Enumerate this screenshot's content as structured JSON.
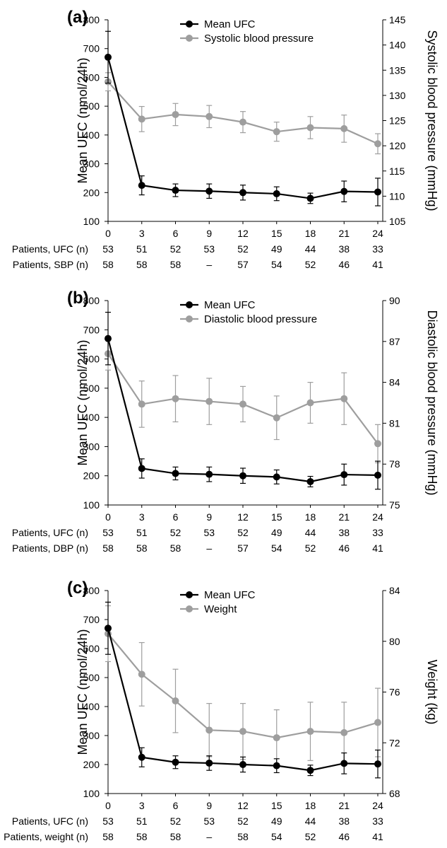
{
  "chart_data": [
    {
      "panel_label": "(a)",
      "type": "line",
      "x": [
        0,
        3,
        6,
        9,
        12,
        15,
        18,
        21,
        24
      ],
      "xticklabels": [
        "0",
        "3",
        "6",
        "9",
        "12",
        "15",
        "18",
        "21",
        "24"
      ],
      "ylabel": "Mean UFC (nmol/24h)",
      "y2label": "Systolic blood pressure (mmHg)",
      "ylim": [
        100,
        800
      ],
      "yticks": [
        100,
        200,
        300,
        400,
        500,
        600,
        700,
        800
      ],
      "y2lim": [
        105,
        145
      ],
      "y2ticks": [
        105,
        110,
        115,
        120,
        125,
        130,
        135,
        140,
        145
      ],
      "legend_position": "top-center",
      "series": [
        {
          "name": "Mean UFC",
          "axis": "left",
          "color": "#000000",
          "values": [
            670,
            225,
            208,
            205,
            200,
            196,
            180,
            204,
            202
          ],
          "err_upper": [
            760,
            258,
            230,
            230,
            226,
            220,
            198,
            240,
            250
          ],
          "err_lower": [
            580,
            192,
            186,
            180,
            174,
            172,
            162,
            168,
            154
          ]
        },
        {
          "name": "Systolic blood pressure",
          "axis": "right",
          "color": "#9e9e9e",
          "values": [
            132.7,
            125.3,
            126.2,
            125.8,
            124.7,
            122.8,
            123.6,
            123.4,
            120.4
          ],
          "err_upper": [
            134.5,
            127.8,
            128.4,
            128.0,
            126.8,
            124.7,
            125.8,
            126.1,
            122.4
          ],
          "err_lower": [
            130.9,
            122.8,
            124.0,
            123.6,
            122.6,
            120.9,
            121.4,
            120.7,
            118.4
          ]
        }
      ],
      "table": [
        {
          "label": "Patients, UFC (n)",
          "values": [
            "53",
            "51",
            "52",
            "53",
            "52",
            "49",
            "44",
            "38",
            "33"
          ]
        },
        {
          "label": "Patients, SBP (n)",
          "values": [
            "58",
            "58",
            "58",
            "–",
            "57",
            "54",
            "52",
            "46",
            "41"
          ]
        }
      ]
    },
    {
      "panel_label": "(b)",
      "type": "line",
      "x": [
        0,
        3,
        6,
        9,
        12,
        15,
        18,
        21,
        24
      ],
      "xticklabels": [
        "0",
        "3",
        "6",
        "9",
        "12",
        "15",
        "18",
        "21",
        "24"
      ],
      "ylabel": "Mean UFC (nmol/24h)",
      "y2label": "Diastolic blood pressure (mmHg)",
      "ylim": [
        100,
        800
      ],
      "yticks": [
        100,
        200,
        300,
        400,
        500,
        600,
        700,
        800
      ],
      "y2lim": [
        75,
        90
      ],
      "y2ticks": [
        75,
        78,
        81,
        84,
        87,
        90
      ],
      "legend_position": "top-center",
      "series": [
        {
          "name": "Mean UFC",
          "axis": "left",
          "color": "#000000",
          "values": [
            670,
            225,
            208,
            205,
            200,
            196,
            180,
            204,
            202
          ],
          "err_upper": [
            760,
            258,
            230,
            230,
            226,
            220,
            198,
            240,
            250
          ],
          "err_lower": [
            580,
            192,
            186,
            180,
            174,
            172,
            162,
            168,
            154
          ]
        },
        {
          "name": "Diastolic blood pressure",
          "axis": "right",
          "color": "#9e9e9e",
          "values": [
            86.1,
            82.4,
            82.8,
            82.6,
            82.4,
            81.4,
            82.5,
            82.8,
            79.5
          ],
          "err_upper": [
            87.3,
            84.1,
            84.5,
            84.3,
            83.7,
            83.0,
            84.0,
            84.7,
            80.9
          ],
          "err_lower": [
            84.9,
            80.7,
            81.1,
            80.9,
            81.1,
            79.8,
            81.0,
            80.9,
            78.1
          ]
        }
      ],
      "table": [
        {
          "label": "Patients, UFC (n)",
          "values": [
            "53",
            "51",
            "52",
            "53",
            "52",
            "49",
            "44",
            "38",
            "33"
          ]
        },
        {
          "label": "Patients, DBP (n)",
          "values": [
            "58",
            "58",
            "58",
            "–",
            "57",
            "54",
            "52",
            "46",
            "41"
          ]
        }
      ]
    },
    {
      "panel_label": "(c)",
      "type": "line",
      "x": [
        0,
        3,
        6,
        9,
        12,
        15,
        18,
        21,
        24
      ],
      "xticklabels": [
        "0",
        "3",
        "6",
        "9",
        "12",
        "15",
        "18",
        "21",
        "24"
      ],
      "ylabel": "Mean UFC (nmol/24h)",
      "y2label": "Weight (kg)",
      "ylim": [
        100,
        800
      ],
      "yticks": [
        100,
        200,
        300,
        400,
        500,
        600,
        700,
        800
      ],
      "y2lim": [
        68,
        84
      ],
      "y2ticks": [
        68,
        72,
        76,
        80,
        84
      ],
      "legend_position": "top-center",
      "series": [
        {
          "name": "Mean UFC",
          "axis": "left",
          "color": "#000000",
          "values": [
            670,
            225,
            208,
            205,
            200,
            196,
            180,
            204,
            202
          ],
          "err_upper": [
            760,
            258,
            230,
            230,
            226,
            220,
            198,
            240,
            250
          ],
          "err_lower": [
            580,
            192,
            186,
            180,
            174,
            172,
            162,
            168,
            154
          ]
        },
        {
          "name": "Weight",
          "axis": "right",
          "color": "#9e9e9e",
          "values": [
            80.6,
            77.4,
            75.3,
            73.0,
            72.9,
            72.4,
            72.9,
            72.8,
            73.6
          ],
          "err_upper": [
            82.8,
            79.9,
            77.8,
            75.1,
            75.1,
            74.6,
            75.2,
            75.2,
            76.3
          ],
          "err_lower": [
            78.4,
            74.9,
            72.8,
            70.9,
            70.7,
            70.2,
            70.6,
            70.4,
            70.9
          ]
        }
      ],
      "table": [
        {
          "label": "Patients, UFC (n)",
          "values": [
            "53",
            "51",
            "52",
            "53",
            "52",
            "49",
            "44",
            "38",
            "33"
          ]
        },
        {
          "label": "Patients, weight (n)",
          "values": [
            "58",
            "58",
            "58",
            "–",
            "58",
            "54",
            "52",
            "46",
            "41"
          ]
        }
      ]
    }
  ]
}
